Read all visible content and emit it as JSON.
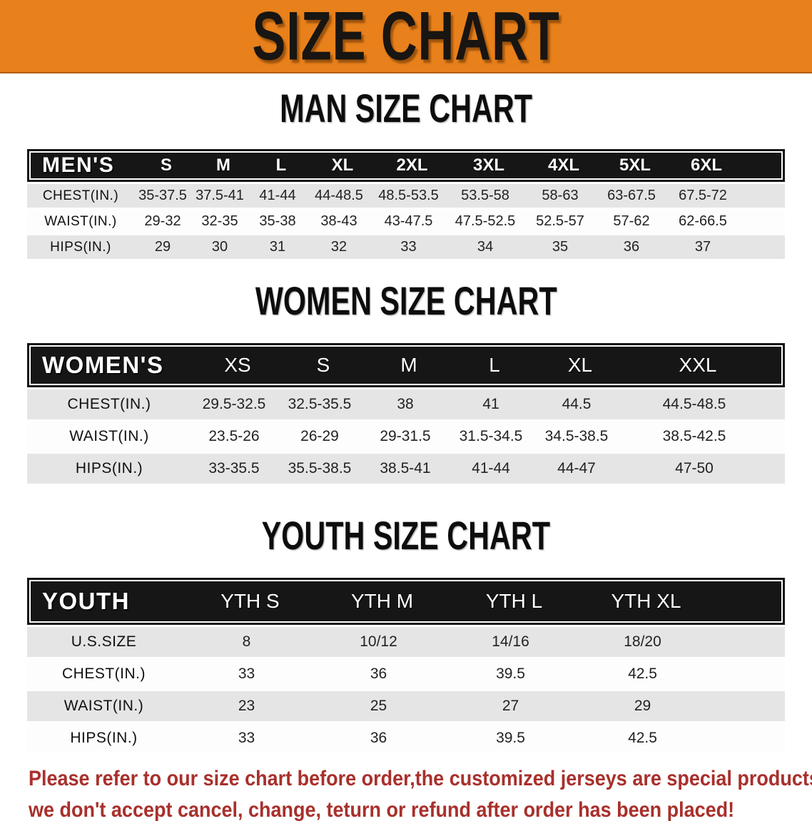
{
  "banner": {
    "title": "SIZE CHART",
    "bg_color": "#E8801B"
  },
  "colors": {
    "header_bar_bg": "#161616",
    "row_shade_bg": "#E5E5E5",
    "footer_text": "#A8302C"
  },
  "men": {
    "heading": "MAN SIZE CHART",
    "group_label": "MEN'S",
    "sizes": [
      "S",
      "M",
      "L",
      "XL",
      "2XL",
      "3XL",
      "4XL",
      "5XL",
      "6XL"
    ],
    "rows": [
      {
        "label": "CHEST(IN.)",
        "values": [
          "35-37.5",
          "37.5-41",
          "41-44",
          "44-48.5",
          "48.5-53.5",
          "53.5-58",
          "58-63",
          "63-67.5",
          "67.5-72"
        ]
      },
      {
        "label": "WAIST(IN.)",
        "values": [
          "29-32",
          "32-35",
          "35-38",
          "38-43",
          "43-47.5",
          "47.5-52.5",
          "52.5-57",
          "57-62",
          "62-66.5"
        ]
      },
      {
        "label": "HIPS(IN.)",
        "values": [
          "29",
          "30",
          "31",
          "32",
          "33",
          "34",
          "35",
          "36",
          "37"
        ]
      }
    ]
  },
  "women": {
    "heading": "WOMEN SIZE CHART",
    "group_label": "WOMEN'S",
    "sizes": [
      "XS",
      "S",
      "M",
      "L",
      "XL",
      "XXL"
    ],
    "rows": [
      {
        "label": "CHEST(IN.)",
        "values": [
          "29.5-32.5",
          "32.5-35.5",
          "38",
          "41",
          "44.5",
          "44.5-48.5"
        ]
      },
      {
        "label": "WAIST(IN.)",
        "values": [
          "23.5-26",
          "26-29",
          "29-31.5",
          "31.5-34.5",
          "34.5-38.5",
          "38.5-42.5"
        ]
      },
      {
        "label": "HIPS(IN.)",
        "values": [
          "33-35.5",
          "35.5-38.5",
          "38.5-41",
          "41-44",
          "44-47",
          "47-50"
        ]
      }
    ]
  },
  "youth": {
    "heading": "YOUTH SIZE CHART",
    "group_label": "YOUTH",
    "sizes": [
      "YTH S",
      "YTH M",
      "YTH L",
      "YTH XL"
    ],
    "rows": [
      {
        "label": "U.S.SIZE",
        "values": [
          "8",
          "10/12",
          "14/16",
          "18/20"
        ]
      },
      {
        "label": "CHEST(IN.)",
        "values": [
          "33",
          "36",
          "39.5",
          "42.5"
        ]
      },
      {
        "label": "WAIST(IN.)",
        "values": [
          "23",
          "25",
          "27",
          "29"
        ]
      },
      {
        "label": "HIPS(IN.)",
        "values": [
          "33",
          "36",
          "39.5",
          "42.5"
        ]
      }
    ]
  },
  "footer": {
    "line1": "Please refer to our size chart before order,the customized jerseys are special products,",
    "line2": "we don't accept cancel, change, teturn or refund after order has been placed!"
  }
}
